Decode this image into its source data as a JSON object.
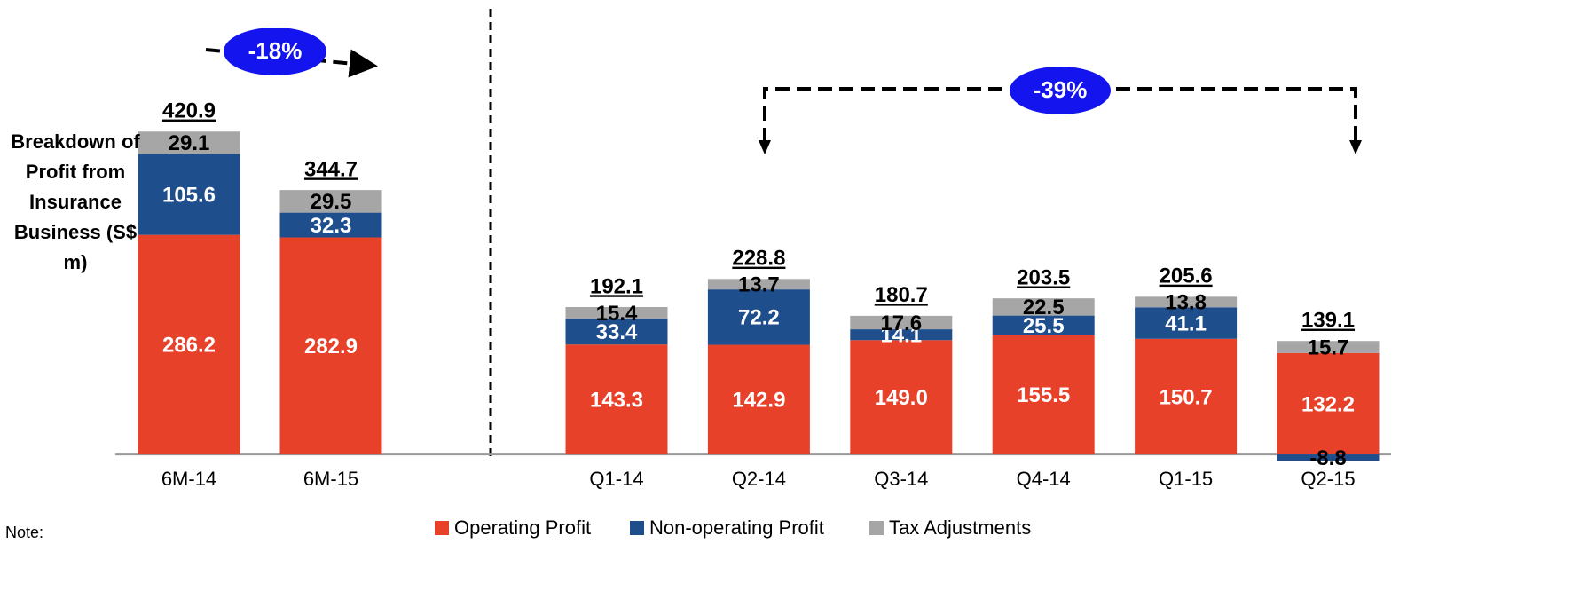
{
  "chart_data": {
    "type": "stacked_bar",
    "ylabel": "Breakdown of Profit from Insurance Business (S$ m)",
    "categories": [
      "6M-14",
      "6M-15",
      "Q1-14",
      "Q2-14",
      "Q3-14",
      "Q4-14",
      "Q1-15",
      "Q2-15"
    ],
    "series": [
      {
        "name": "Operating Profit",
        "color": "#E8412A",
        "values": [
          286.2,
          282.9,
          143.3,
          142.9,
          149.0,
          155.5,
          150.7,
          132.2
        ],
        "value_labels": [
          "286.2",
          "282.9",
          "143.3",
          "142.9",
          "149.0",
          "155.5",
          "150.7",
          "132.2"
        ]
      },
      {
        "name": "Non-operating Profit",
        "color": "#1F4E8C",
        "values": [
          105.6,
          32.3,
          33.4,
          72.2,
          14.1,
          25.5,
          41.1,
          -8.8
        ],
        "value_labels": [
          "105.6",
          "32.3",
          "33.4",
          "72.2",
          "14.1",
          "25.5",
          "41.1",
          "-8.8"
        ]
      },
      {
        "name": "Tax Adjustments",
        "color": "#A6A6A6",
        "values": [
          29.1,
          29.5,
          15.4,
          13.7,
          17.6,
          22.5,
          13.8,
          15.7
        ],
        "value_labels": [
          "29.1",
          "29.5",
          "15.4",
          "13.7",
          "17.6",
          "22.5",
          "13.8",
          "15.7"
        ]
      }
    ],
    "totals": [
      420.9,
      344.7,
      192.1,
      228.8,
      180.7,
      203.5,
      205.6,
      139.1
    ],
    "annotations": [
      {
        "text": "-18%"
      },
      {
        "text": "-39%"
      }
    ],
    "ylim": [
      -30,
      560
    ],
    "legend": "bottom",
    "note": "Note:"
  }
}
